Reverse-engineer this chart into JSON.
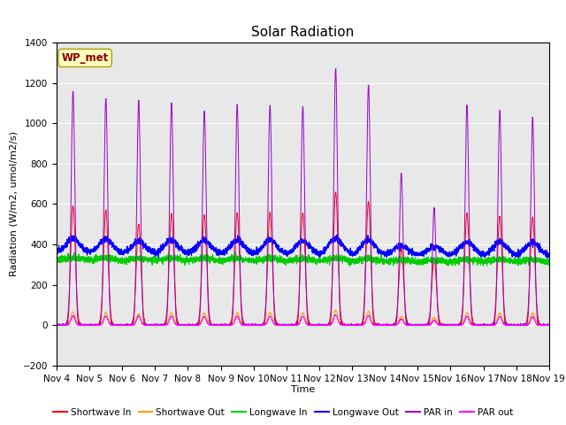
{
  "title": "Solar Radiation",
  "ylabel": "Radiation (W/m2, umol/m2/s)",
  "xlabel": "Time",
  "ylim": [
    -200,
    1400
  ],
  "yticks": [
    -200,
    0,
    200,
    400,
    600,
    800,
    1000,
    1200,
    1400
  ],
  "num_days": 15,
  "points_per_day": 288,
  "legend_label": "WP_met",
  "lines": {
    "shortwave_in": {
      "label": "Shortwave In",
      "color": "#ff0000"
    },
    "shortwave_out": {
      "label": "Shortwave Out",
      "color": "#ffa500"
    },
    "longwave_in": {
      "label": "Longwave In",
      "color": "#00cc00"
    },
    "longwave_out": {
      "label": "Longwave Out",
      "color": "#0000ff"
    },
    "par_in": {
      "label": "PAR in",
      "color": "#9900cc"
    },
    "par_out": {
      "label": "PAR out",
      "color": "#ff00ff"
    }
  },
  "day_peaks_sw_in": [
    590,
    570,
    500,
    550,
    545,
    555,
    560,
    555,
    660,
    610,
    380,
    330,
    555,
    540,
    535
  ],
  "day_peaks_par_in": [
    1160,
    1120,
    1110,
    1100,
    1060,
    1090,
    1090,
    1080,
    1270,
    1190,
    750,
    580,
    1090,
    1060,
    1030
  ],
  "background_color": "#e8e8e8",
  "fig_background": "#ffffff",
  "day_labels": [
    "Nov 4",
    "Nov 5",
    "Nov 6",
    "Nov 7",
    "Nov 8",
    "Nov 9",
    "Nov 10",
    "Nov 11",
    "Nov 12",
    "Nov 13",
    "Nov 14",
    "Nov 15",
    "Nov 16",
    "Nov 17",
    "Nov 18",
    "Nov 19"
  ]
}
